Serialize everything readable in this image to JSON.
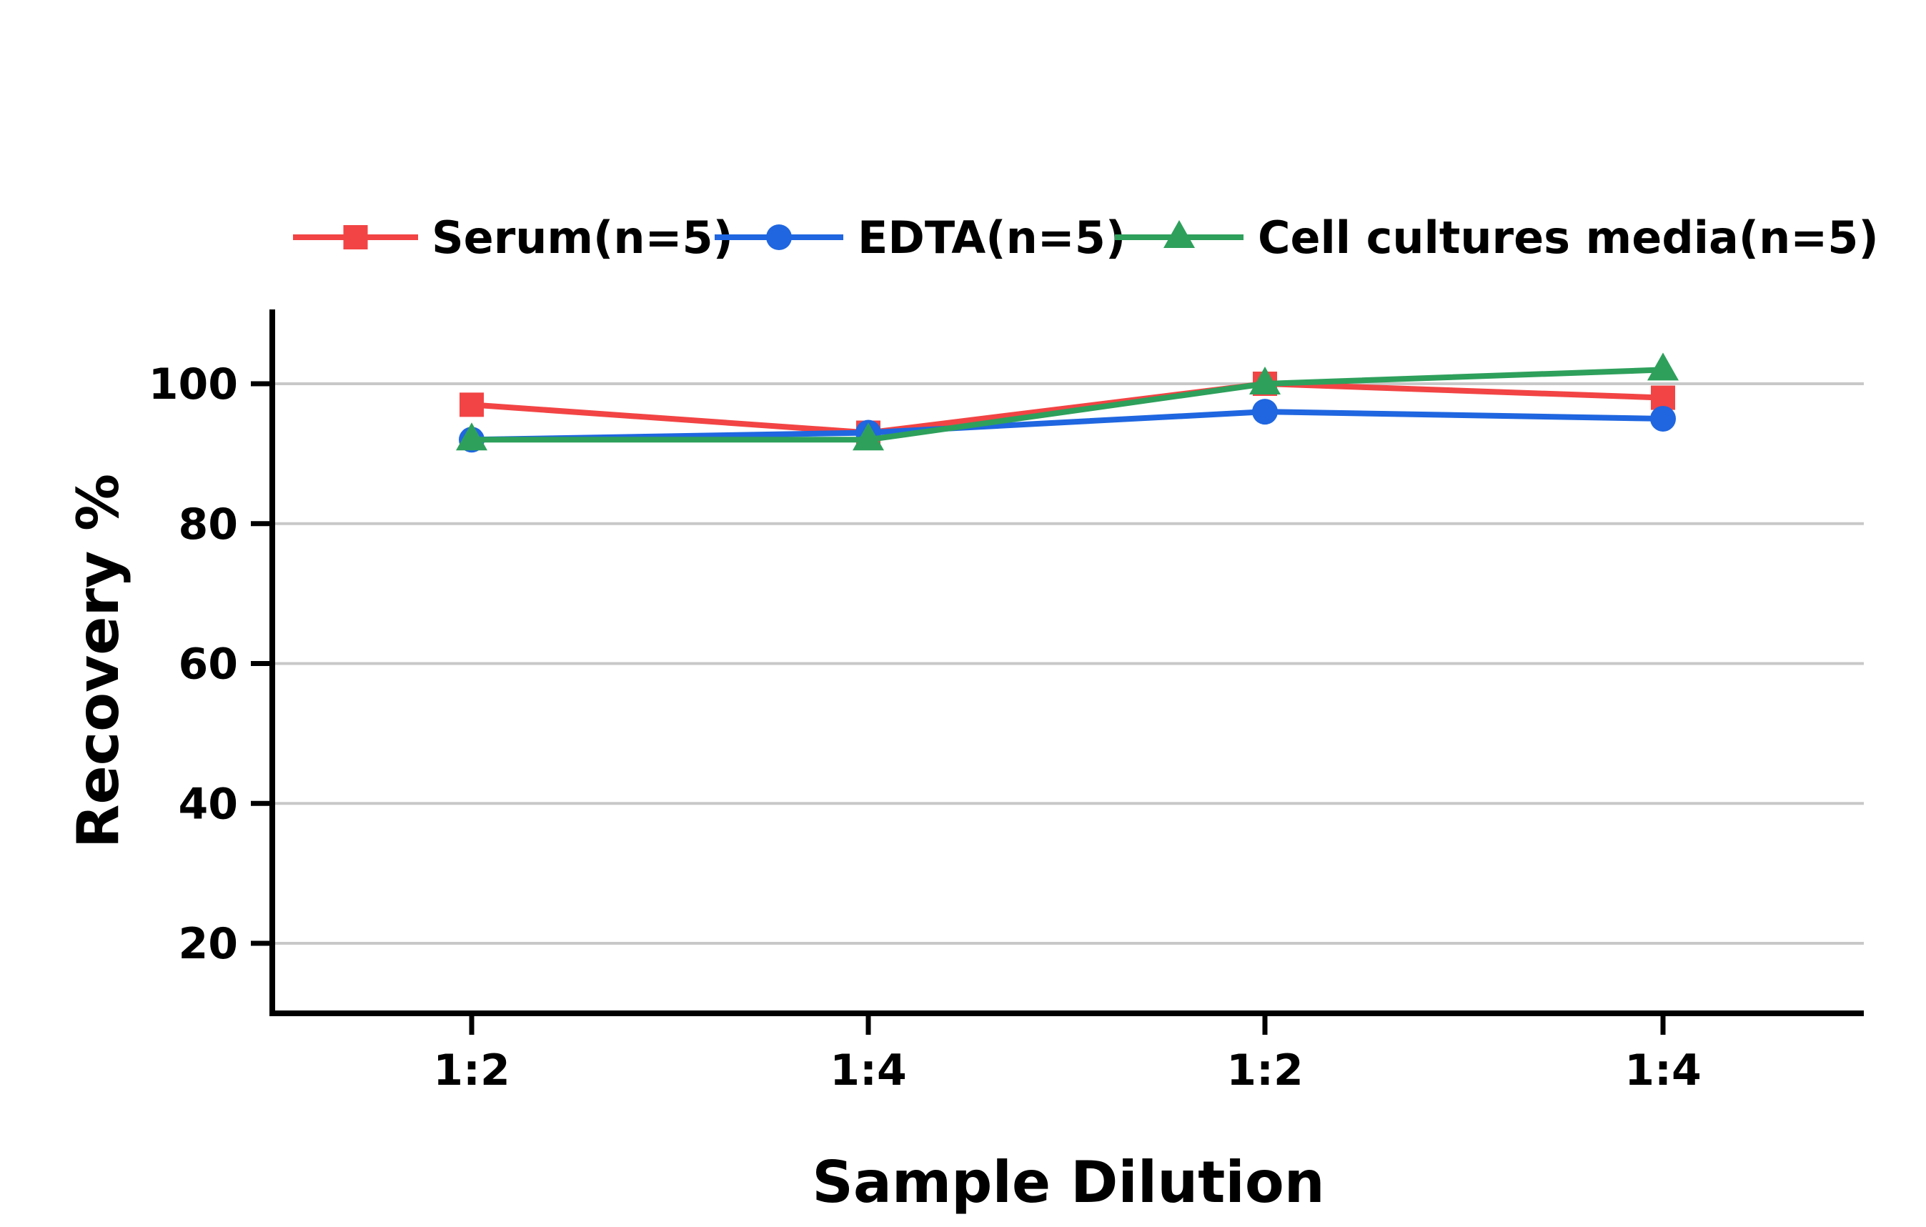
{
  "chart_data": {
    "type": "line",
    "title": "",
    "xlabel": "Sample Dilution",
    "ylabel": "Recovery %",
    "categories": [
      "1:2",
      "1:4",
      "1:2",
      "1:4"
    ],
    "yticks": [
      20,
      40,
      60,
      80,
      100
    ],
    "ylim": [
      10,
      110
    ],
    "grid": "horizontal",
    "legend_position": "top",
    "series": [
      {
        "name": "Serum(n=5)",
        "values": [
          97,
          93,
          100,
          98
        ],
        "color": "#f24444",
        "marker": "square"
      },
      {
        "name": "EDTA(n=5)",
        "values": [
          92,
          93,
          96,
          95
        ],
        "color": "#1f66e0",
        "marker": "circle"
      },
      {
        "name": "Cell cultures media(n=5)",
        "values": [
          92,
          92,
          100,
          102
        ],
        "color": "#2ea05c",
        "marker": "triangle"
      }
    ]
  }
}
